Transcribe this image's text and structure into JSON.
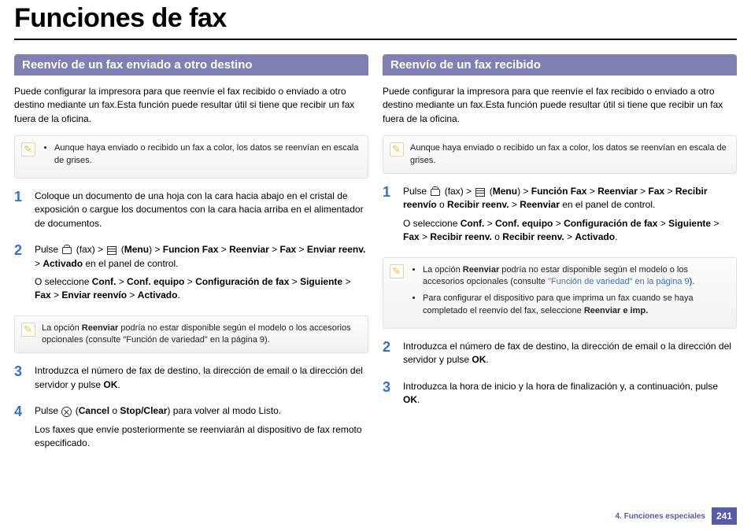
{
  "title": "Funciones de fax",
  "footer": {
    "chapter": "4.  Funciones especiales",
    "page": "241"
  },
  "colors": {
    "header_bg": "#8080b5",
    "step_num": "#3d6fc4",
    "footer_accent": "#5a5aa6"
  },
  "left": {
    "header": "Reenvío de un fax enviado a otro destino",
    "intro": "Puede configurar la impresora para que reenvíe el fax recibido o enviado a otro destino mediante un fax.Esta función puede resultar útil si tiene que recibir un fax fuera de la oficina.",
    "note1": "Aunque haya enviado o recibido un fax a color, los datos se reenvían en escala de grises.",
    "steps": {
      "s1": {
        "n": "1",
        "t": "Coloque un documento de una hoja con la cara hacia abajo en el cristal de exposición o cargue los documentos con la cara hacia arriba en el alimentador de documentos."
      },
      "s2": {
        "n": "2",
        "a_pre": "Pulse ",
        "a_fax": " (fax) > ",
        "a_menu_open": " (",
        "a_menu": "Menu",
        "a_menu_close": ") > ",
        "a_funcion": "Funcion Fax",
        "a_sep1": " > ",
        "a_reenviar": "Reenviar",
        "a_sep2": " > ",
        "a_faxb": "Fax",
        "a_sep3": " > ",
        "a_enviar": "Enviar reenv.",
        "a_sep4": " > ",
        "a_activado": "Activado",
        "a_end": " en el panel de control.",
        "b_pre": "O seleccione ",
        "b_conf": "Conf.",
        "b_sep1": " > ",
        "b_confe": "Conf. equipo",
        "b_sep2": " > ",
        "b_conffax": "Configuración de fax",
        "b_sep3": " > ",
        "b_sig": "Siguiente",
        "b_sep4": " > ",
        "b_fax": "Fax",
        "b_sep5": " > ",
        "b_envreen": "Enviar reenvío",
        "b_sep6": " > ",
        "b_act": "Activado",
        "b_end": "."
      },
      "s3": {
        "n": "3",
        "pre": "Introduzca el número de fax de destino, la dirección de email o la dirección del servidor y pulse ",
        "ok": "OK",
        "post": "."
      },
      "s4": {
        "n": "4",
        "a_pre": "Pulse ",
        "a_open": "  (",
        "a_cancel": "Cancel",
        "a_or": " o ",
        "a_stop": "Stop/Clear",
        "a_close": ") para volver al modo Listo.",
        "b": "Los faxes que envíe posteriormente se reenviarán al dispositivo de fax remoto especificado."
      }
    },
    "note2_pre": "La opción ",
    "note2_b": "Reenviar",
    "note2_post": " podría no estar disponible según el modelo o los accesorios opcionales (consulte \"Función de variedad\" en la página 9)."
  },
  "right": {
    "header": "Reenvío de un fax recibido",
    "intro": "Puede configurar la impresora para que reenvíe el fax recibido o enviado a otro destino mediante un fax.Esta función puede resultar útil si tiene que recibir un fax fuera de la oficina.",
    "note1": "Aunque haya enviado o recibido un fax a color, los datos se reenvían en escala de grises.",
    "steps": {
      "s1": {
        "n": "1",
        "a_pre": "Pulse ",
        "a_fax": " (fax) > ",
        "a_menu_open": " (",
        "a_menu": "Menu",
        "a_menu_close": ") > ",
        "a_funcion": "Función Fax",
        "a_sep1": " > ",
        "a_reenviar": "Reenviar",
        "a_sep2": " > ",
        "a_faxb": "Fax",
        "a_sep3": " > ",
        "a_recibir": "Recibir reenvío",
        "a_or": " o ",
        "a_recibir2": "Recibir reenv.",
        "a_sep4": " > ",
        "a_reenv2": "Reenviar",
        "a_end": " en el panel de control.",
        "b_pre": "O seleccione ",
        "b_conf": "Conf.",
        "b_sep1": " > ",
        "b_confe": "Conf. equipo",
        "b_sep2": " > ",
        "b_conffax": "Configuración de fax",
        "b_sep3": " > ",
        "b_sig": "Siguiente",
        "b_sep4": " > ",
        "b_fax": "Fax",
        "b_sep5": " > ",
        "b_rec": "Recibir reenv.",
        "b_or": " o ",
        "b_rec2": "Recibir reenv.",
        "b_sep6": " > ",
        "b_act": "Activado",
        "b_end": "."
      },
      "s2": {
        "n": "2",
        "pre": "Introduzca el número de fax de destino, la dirección de email o la dirección del servidor y pulse ",
        "ok": "OK",
        "post": "."
      },
      "s3": {
        "n": "3",
        "pre": "Introduzca la hora de inicio y la hora de finalización y, a continuación, pulse ",
        "ok": "OK",
        "post": "."
      }
    },
    "note2_li1_pre": "La opción ",
    "note2_li1_b": "Reenviar",
    "note2_li1_mid": " podría no estar disponible según el modelo o los accesorios opcionales (consulte ",
    "note2_li1_link": "\"Función de variedad\" en la página 9",
    "note2_li1_post": ").",
    "note2_li2_pre": "Para configurar el dispositivo para que imprima un fax cuando se haya completado el reenvío del fax, seleccione ",
    "note2_li2_b": "Reenviar e imp."
  }
}
